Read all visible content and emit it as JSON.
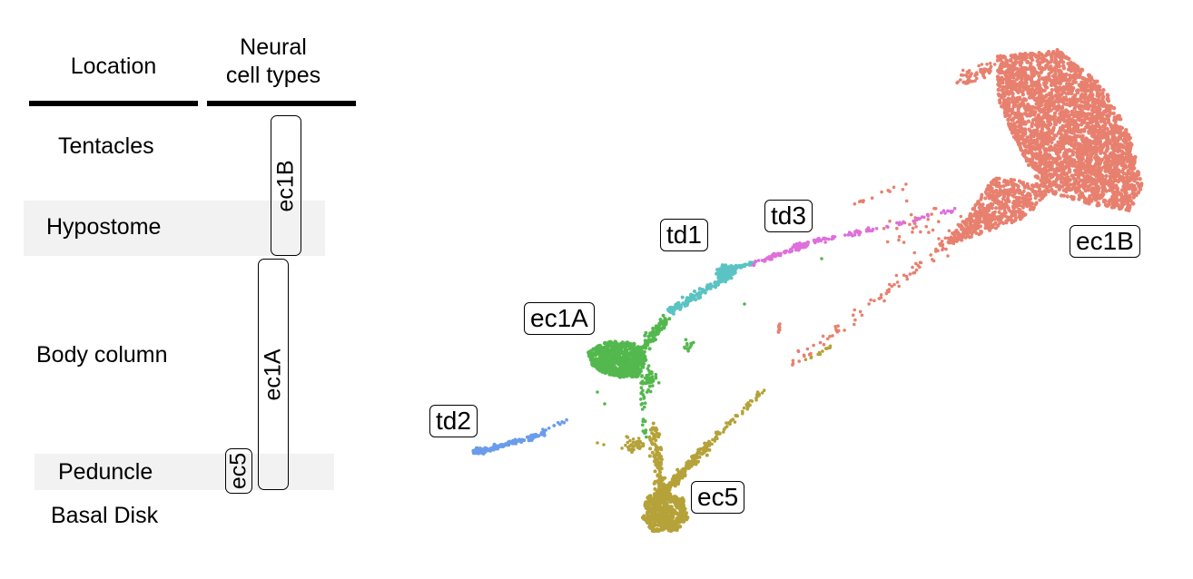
{
  "headers": {
    "location": "Location",
    "neural_line1": "Neural",
    "neural_line2": "cell types"
  },
  "locations": [
    "Tentacles",
    "Hypostome",
    "Body column",
    "Peduncle",
    "Basal Disk"
  ],
  "cell_types": [
    "ec1B",
    "ec1A",
    "ec5"
  ],
  "clusters": [
    {
      "label": "ec1B",
      "color": "#E8806F"
    },
    {
      "label": "td1",
      "color": "#5BC3C3"
    },
    {
      "label": "td3",
      "color": "#DE6FDB"
    },
    {
      "label": "ec1A",
      "color": "#53B84E"
    },
    {
      "label": "td2",
      "color": "#6B9CEB"
    },
    {
      "label": "ec5",
      "color": "#B5A239"
    }
  ],
  "band_color": "#f2f2f2"
}
